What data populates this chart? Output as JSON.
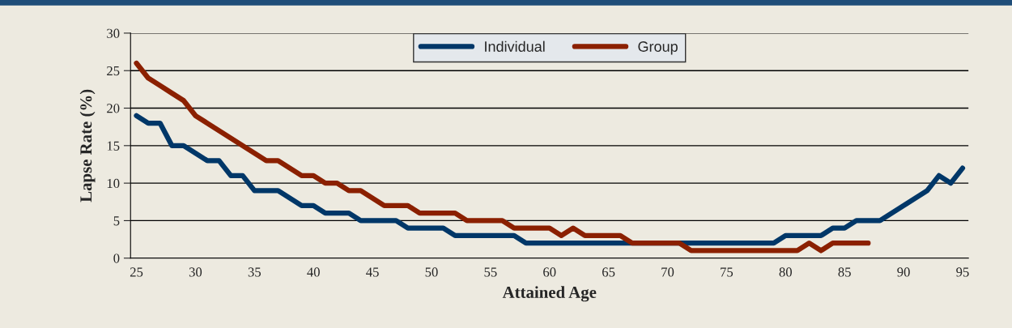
{
  "chart_data": {
    "type": "line",
    "xlabel": "Attained Age",
    "ylabel": "Lapse Rate (%)",
    "categories": [
      "25",
      null,
      null,
      null,
      null,
      "30",
      null,
      null,
      null,
      null,
      "35",
      null,
      null,
      null,
      null,
      "40",
      null,
      null,
      null,
      null,
      "45",
      null,
      null,
      null,
      null,
      "50",
      null,
      null,
      null,
      null,
      "55",
      null,
      null,
      null,
      null,
      "60",
      null,
      null,
      null,
      null,
      "65",
      null,
      null,
      null,
      null,
      "70",
      null,
      null,
      null,
      null,
      "75",
      null,
      null,
      null,
      null,
      "80",
      null,
      null,
      null,
      null,
      "85",
      null,
      null,
      null,
      null,
      "90",
      null,
      null,
      null,
      null,
      "95"
    ],
    "series": [
      {
        "name": "Individual",
        "color": "#003768",
        "values": [
          19,
          18,
          18,
          15,
          15,
          14,
          13,
          13,
          11,
          11,
          9,
          9,
          9,
          8,
          7,
          7,
          6,
          6,
          6,
          5,
          5,
          5,
          5,
          4,
          4,
          4,
          4,
          3,
          3,
          3,
          3,
          3,
          3,
          2,
          2,
          2,
          2,
          2,
          2,
          2,
          2,
          2,
          2,
          null,
          null,
          null,
          2,
          2,
          2,
          2,
          2,
          2,
          2,
          2,
          2,
          3,
          3,
          3,
          3,
          4,
          4,
          5,
          5,
          5,
          6,
          7,
          8,
          9,
          11,
          10,
          12
        ]
      },
      {
        "name": "Group",
        "color": "#8b2000",
        "values": [
          26,
          24,
          23,
          22,
          21,
          19,
          18,
          17,
          16,
          15,
          14,
          13,
          13,
          12,
          11,
          11,
          10,
          10,
          9,
          9,
          8,
          7,
          7,
          7,
          6,
          6,
          6,
          6,
          5,
          5,
          5,
          5,
          4,
          4,
          4,
          4,
          3,
          4,
          3,
          3,
          3,
          3,
          2,
          2,
          2,
          2,
          2,
          1,
          1,
          1,
          1,
          1,
          1,
          1,
          1,
          1,
          1,
          2,
          1,
          2,
          2,
          2,
          2,
          null,
          null,
          null,
          null,
          null,
          null,
          null,
          null
        ]
      }
    ],
    "ylim": [
      0,
      30
    ],
    "yticks": [
      0,
      5,
      10,
      15,
      20,
      25,
      30
    ],
    "grid": "y",
    "legend": "top",
    "line_style": "solid",
    "marker": "none"
  }
}
